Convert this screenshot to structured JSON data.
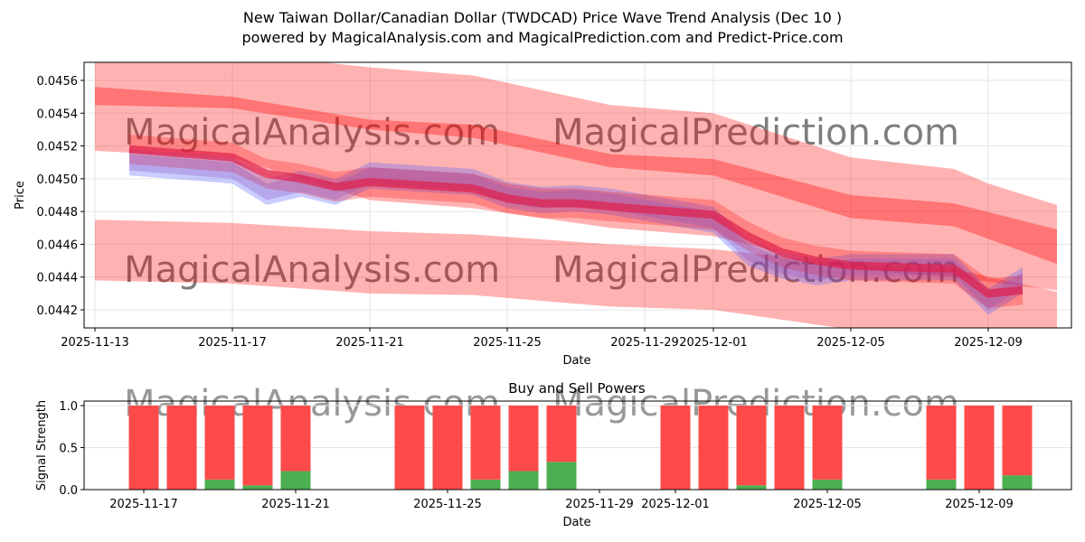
{
  "title_line1": "New Taiwan Dollar/Canadian Dollar (TWDCAD) Price Wave Trend Analysis (Dec 10 )",
  "title_line2": "powered by MagicalAnalysis.com and MagicalPrediction.com and Predict-Price.com",
  "watermarks": [
    "MagicalAnalysis.com",
    "MagicalPrediction.com"
  ],
  "colors": {
    "band": "#ff0000",
    "blue": "#4d5bff",
    "buy": "#4caf50",
    "sell": "#ff4a4a"
  },
  "chart_data": [
    {
      "type": "line",
      "title": "",
      "xlabel": "Date",
      "ylabel": "Price",
      "ylim": [
        0.04419,
        0.04571
      ],
      "xlim": [
        "2025-11-12",
        "2025-12-11"
      ],
      "yticks": [
        "0.0442",
        "0.0444",
        "0.0446",
        "0.0448",
        "0.0450",
        "0.0452",
        "0.0454",
        "0.0456"
      ],
      "xticks": [
        "2025-11-13",
        "2025-11-17",
        "2025-11-21",
        "2025-11-25",
        "2025-11-29",
        "2025-12-01",
        "2025-12-05",
        "2025-12-09"
      ],
      "grid": true,
      "bands": [
        {
          "name": "upper-outer",
          "x": [
            "2025-11-13",
            "2025-11-17",
            "2025-11-21",
            "2025-11-24",
            "2025-11-28",
            "2025-12-01",
            "2025-12-05",
            "2025-12-08",
            "2025-12-09",
            "2025-12-11"
          ],
          "hi": [
            0.0458,
            0.04577,
            0.04568,
            0.04563,
            0.04545,
            0.0454,
            0.04513,
            0.04506,
            0.04497,
            0.04484
          ],
          "lo": [
            0.04517,
            0.04513,
            0.04487,
            0.04482,
            0.0447,
            0.04465,
            0.04445,
            0.0444,
            0.04437,
            0.04432
          ]
        },
        {
          "name": "upper-trend",
          "x": [
            "2025-11-13",
            "2025-11-17",
            "2025-11-21",
            "2025-11-24",
            "2025-11-28",
            "2025-12-01",
            "2025-12-05",
            "2025-12-08",
            "2025-12-11"
          ],
          "hi": [
            0.04556,
            0.0455,
            0.04536,
            0.04533,
            0.04515,
            0.04512,
            0.0449,
            0.04485,
            0.04469
          ],
          "lo": [
            0.04545,
            0.04543,
            0.0453,
            0.04525,
            0.04507,
            0.04502,
            0.04476,
            0.04471,
            0.04448
          ]
        },
        {
          "name": "lower-outer",
          "x": [
            "2025-11-13",
            "2025-11-17",
            "2025-11-21",
            "2025-11-24",
            "2025-11-28",
            "2025-12-01",
            "2025-12-05",
            "2025-12-08",
            "2025-12-11"
          ],
          "hi": [
            0.04475,
            0.04473,
            0.04468,
            0.04466,
            0.0446,
            0.04457,
            0.04448,
            0.04445,
            0.04431
          ],
          "lo": [
            0.04438,
            0.04436,
            0.0443,
            0.04429,
            0.04422,
            0.0442,
            0.04408,
            0.044,
            0.04385
          ]
        }
      ],
      "price": {
        "x": [
          "2025-11-14",
          "2025-11-17",
          "2025-11-18",
          "2025-11-19",
          "2025-11-20",
          "2025-11-21",
          "2025-11-24",
          "2025-11-25",
          "2025-11-26",
          "2025-11-27",
          "2025-11-28",
          "2025-12-01",
          "2025-12-02",
          "2025-12-03",
          "2025-12-04",
          "2025-12-05",
          "2025-12-08",
          "2025-12-09",
          "2025-12-10"
        ],
        "y": [
          0.04518,
          0.04513,
          0.04503,
          0.045,
          0.04495,
          0.04498,
          0.04494,
          0.04488,
          0.04485,
          0.04485,
          0.04483,
          0.04478,
          0.04465,
          0.04455,
          0.0445,
          0.04447,
          0.04445,
          0.0443,
          0.04432
        ],
        "blue": [
          0.0451,
          0.04505,
          0.04492,
          0.04497,
          0.04492,
          0.04502,
          0.04498,
          0.0449,
          0.04487,
          0.04488,
          0.04486,
          0.04475,
          0.04455,
          0.04447,
          0.04443,
          0.04446,
          0.04446,
          0.04425,
          0.04438
        ]
      }
    },
    {
      "type": "bar",
      "title": "Buy and Sell Powers",
      "xlabel": "Date",
      "ylabel": "Signal Strength",
      "ylim": [
        0,
        1.05
      ],
      "yticks": [
        "0.0",
        "0.5",
        "1.0"
      ],
      "xticks": [
        "2025-11-17",
        "2025-11-21",
        "2025-11-25",
        "2025-11-29",
        "2025-12-01",
        "2025-12-05",
        "2025-12-09"
      ],
      "categories": [
        "2025-11-17",
        "2025-11-18",
        "2025-11-19",
        "2025-11-20",
        "2025-11-21",
        "2025-11-24",
        "2025-11-25",
        "2025-11-26",
        "2025-11-27",
        "2025-11-28",
        "2025-12-01",
        "2025-12-02",
        "2025-12-03",
        "2025-12-04",
        "2025-12-05",
        "2025-12-08",
        "2025-12-09",
        "2025-12-10"
      ],
      "series": [
        {
          "name": "Buy",
          "values": [
            0,
            0,
            0.12,
            0.05,
            0.22,
            0,
            0,
            0.12,
            0.22,
            0.33,
            0,
            0,
            0.05,
            0,
            0.12,
            0.12,
            0,
            0.17
          ]
        },
        {
          "name": "Sell",
          "values": [
            1,
            1,
            0.88,
            0.95,
            0.78,
            1,
            1,
            0.88,
            0.78,
            0.67,
            1,
            1,
            0.95,
            1,
            0.88,
            0.88,
            1,
            0.83
          ]
        }
      ]
    }
  ]
}
